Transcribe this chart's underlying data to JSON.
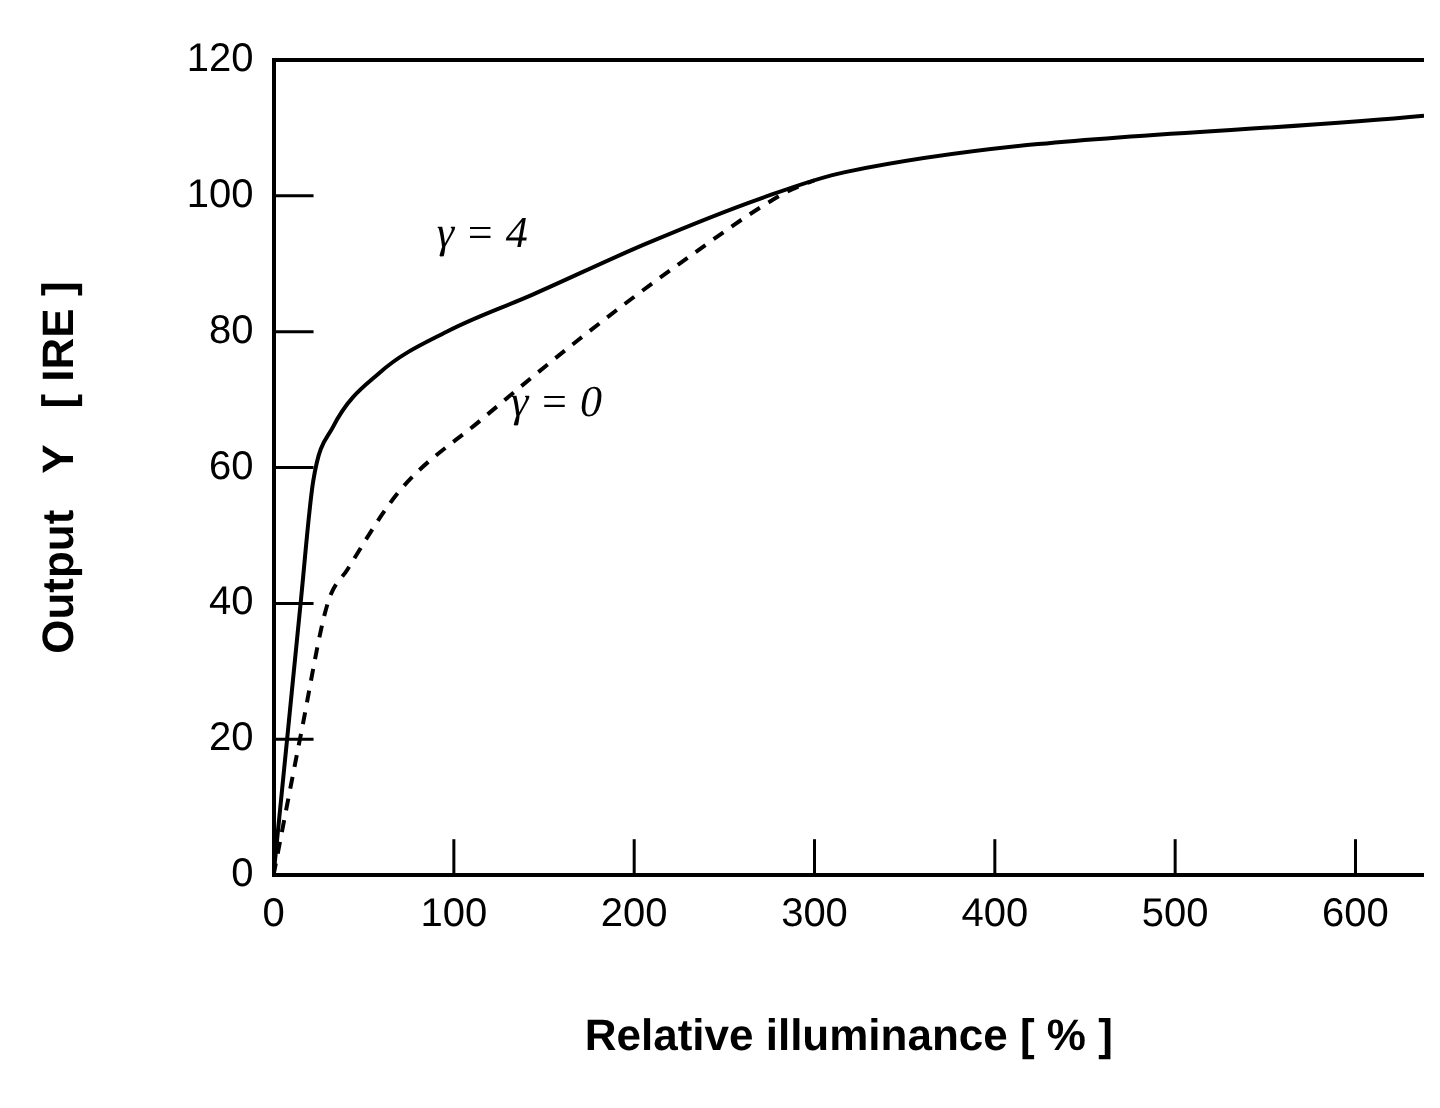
{
  "chart_data": {
    "type": "line",
    "xlabel": "Relative illuminance [ % ]",
    "ylabel": "Output   Y   [ IRE ]",
    "xlim": [
      0,
      638
    ],
    "ylim": [
      0,
      120
    ],
    "xticks": [
      0,
      100,
      200,
      300,
      400,
      500,
      600
    ],
    "yticks": [
      0,
      20,
      40,
      60,
      80,
      100,
      120
    ],
    "grid": false,
    "legend": false,
    "marker": "none",
    "series": [
      {
        "name": "γ = 4",
        "color": "#000000",
        "line_style": "solid",
        "x": [
          0,
          7.7,
          15,
          22,
          33,
          59,
          96,
          144,
          207,
          270,
          317,
          638
        ],
        "values": [
          0,
          20.5,
          40,
          58,
          66,
          74,
          80,
          85.5,
          93,
          99.6,
          103.5,
          111.8
        ]
      },
      {
        "name": "γ = 0",
        "color": "#000000",
        "line_style": "dashed",
        "x": [
          0,
          15,
          30,
          41,
          70,
          115,
          170,
          225,
          284,
          300
        ],
        "values": [
          0,
          20.5,
          40,
          45,
          56.6,
          67,
          79,
          90,
          100.5,
          102.3
        ]
      }
    ]
  }
}
